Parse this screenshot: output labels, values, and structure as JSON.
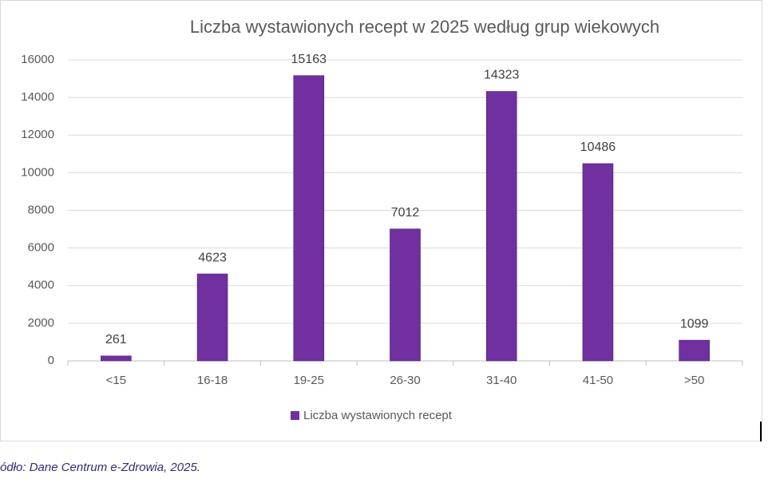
{
  "chart_data": {
    "type": "bar",
    "title": "Liczba wystawionych recept w 2025 według grup wiekowych",
    "categories": [
      "<15",
      "16-18",
      "19-25",
      "26-30",
      "31-40",
      "41-50",
      ">50"
    ],
    "series": [
      {
        "name": "Liczba wystawionych recept",
        "color": "#7030a0",
        "values": [
          261,
          4623,
          15163,
          7012,
          14323,
          10486,
          1099
        ]
      }
    ],
    "ylim": [
      0,
      16000
    ],
    "yticks": [
      0,
      2000,
      4000,
      6000,
      8000,
      10000,
      12000,
      14000,
      16000
    ],
    "grid": true,
    "legend": "bottom"
  },
  "caption": "ódło: Dane Centrum e-Zdrowia, 2025."
}
